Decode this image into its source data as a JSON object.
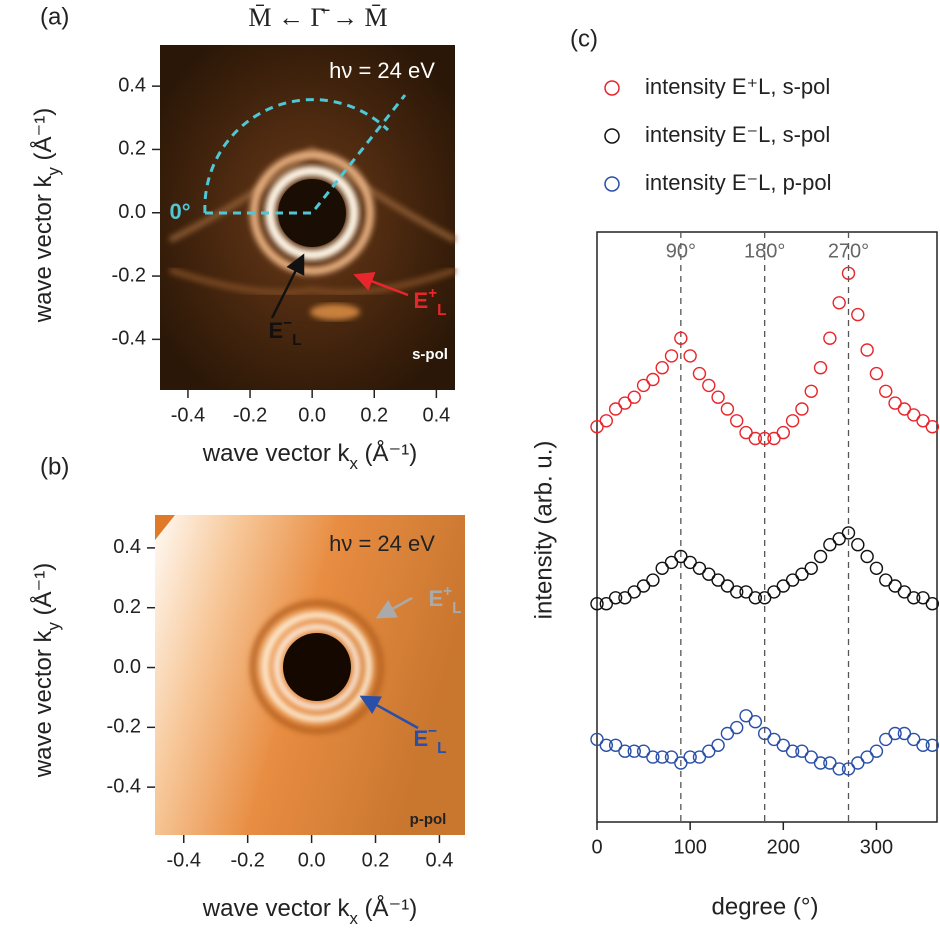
{
  "chart_data": [
    {
      "type": "image",
      "panel_label": "(a)",
      "title": "M̄ ← Γ̄ → M̄",
      "x_label": "wave vector k",
      "x_label_sub": "x",
      "x_label_unit": " (Å⁻¹)",
      "y_label": "wave vector k",
      "y_label_sub": "y",
      "y_label_unit": " (Å⁻¹)",
      "xlim": [
        -0.49,
        0.46
      ],
      "ylim": [
        -0.56,
        0.53
      ],
      "xticks": [
        -0.4,
        -0.2,
        {
          "value": 0,
          "label": "0.0"
        },
        0.2,
        0.4
      ],
      "yticks": [
        -0.4,
        -0.2,
        {
          "value": 0,
          "label": "0.0"
        },
        0.2,
        0.4
      ],
      "annotations": [
        "hν = 24 eV",
        "0°",
        "s-pol"
      ],
      "state_labels": [
        {
          "text": "E",
          "sup": "−",
          "sub": "L"
        },
        {
          "text": "E",
          "sup": "+",
          "sub": "L"
        }
      ]
    },
    {
      "type": "image",
      "panel_label": "(b)",
      "x_label": "wave vector k",
      "x_label_sub": "x",
      "x_label_unit": " (Å⁻¹)",
      "y_label": "wave vector k",
      "y_label_sub": "y",
      "y_label_unit": " (Å⁻¹)",
      "xlim": [
        -0.49,
        0.48
      ],
      "ylim": [
        -0.56,
        0.51
      ],
      "xticks": [
        -0.4,
        -0.2,
        {
          "value": 0,
          "label": "0.0"
        },
        0.2,
        0.4
      ],
      "yticks": [
        -0.4,
        -0.2,
        {
          "value": 0,
          "label": "0.0"
        },
        0.2,
        0.4
      ],
      "annotations": [
        "hν = 24 eV",
        "p-pol"
      ],
      "state_labels": [
        {
          "text": "E",
          "sup": "+",
          "sub": "L"
        },
        {
          "text": "E",
          "sup": "−",
          "sub": "L"
        }
      ]
    },
    {
      "type": "scatter",
      "panel_label": "(c)",
      "x_label": "degree (°)",
      "y_label": "intensity (arb. u.)",
      "xlim": [
        0,
        365
      ],
      "ylim": [
        0,
        100
      ],
      "xticks": [
        0,
        100,
        200,
        300
      ],
      "vlines": [
        {
          "value": 90,
          "label": "90°"
        },
        {
          "value": 180,
          "label": "180°"
        },
        {
          "value": 270,
          "label": "270°"
        }
      ],
      "x": [
        0,
        10,
        20,
        30,
        40,
        50,
        60,
        70,
        80,
        90,
        100,
        110,
        120,
        130,
        140,
        150,
        160,
        170,
        180,
        190,
        200,
        210,
        220,
        230,
        240,
        250,
        260,
        270,
        280,
        290,
        300,
        310,
        320,
        330,
        340,
        350,
        360
      ],
      "series": [
        {
          "name": "intensity E⁺L, s-pol",
          "color": "#e8262b",
          "values": [
            67,
            68,
            70,
            71,
            72,
            74,
            75,
            77,
            79,
            82,
            79,
            76,
            74,
            72,
            70,
            68,
            66,
            65,
            65,
            65,
            66,
            68,
            70,
            73,
            77,
            82,
            88,
            93,
            86,
            80,
            76,
            73,
            71,
            70,
            69,
            68,
            67
          ]
        },
        {
          "name": "intensity E⁻L, s-pol",
          "color": "#111111",
          "values": [
            37,
            37,
            38,
            38,
            39,
            40,
            41,
            43,
            44,
            45,
            44,
            43,
            42,
            41,
            40,
            39,
            39,
            38,
            38,
            39,
            40,
            41,
            42,
            43,
            45,
            47,
            48,
            49,
            47,
            45,
            43,
            41,
            40,
            39,
            38,
            38,
            37
          ]
        },
        {
          "name": "intensity E⁻L, p-pol",
          "color": "#2a4fa8",
          "values": [
            14,
            13,
            13,
            12,
            12,
            12,
            11,
            11,
            11,
            10,
            11,
            11,
            12,
            13,
            15,
            16,
            18,
            17,
            15,
            14,
            13,
            12,
            12,
            11,
            10,
            10,
            9,
            9,
            10,
            11,
            12,
            14,
            15,
            15,
            14,
            13,
            13
          ]
        }
      ]
    }
  ]
}
